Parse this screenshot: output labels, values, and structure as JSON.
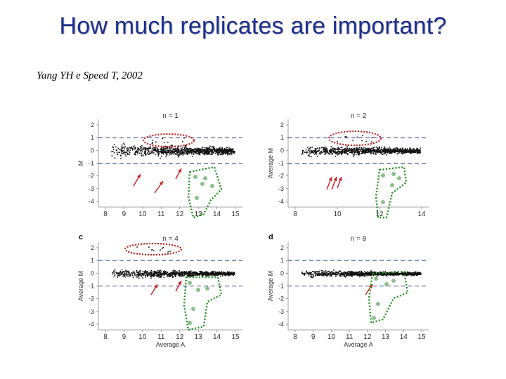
{
  "slide": {
    "title": "How much replicates are important?",
    "citation": "Yang YH e Speed T, 2002"
  },
  "figure": {
    "colors": {
      "points": "#111111",
      "dashed": "#2b3b8f",
      "red": "#cc1f1f",
      "green": "#1f8f1f",
      "green_points": "#8fbf8f"
    },
    "panels": [
      {
        "letter": "",
        "n_label": "n = 1",
        "xlabel": "",
        "ylabel": "M",
        "yticks": [
          "2",
          "1",
          "0",
          "-1",
          "-2",
          "-3",
          "-4"
        ],
        "xticks": [
          "8",
          "9",
          "10",
          "11",
          "12",
          "13",
          "14",
          "15"
        ]
      },
      {
        "letter": "",
        "n_label": "n = 2",
        "xlabel": "",
        "ylabel": "Average M",
        "yticks": [
          "2",
          "1",
          "0",
          "-1",
          "-2",
          "-3",
          "-4"
        ],
        "xticks": [
          "8",
          "10",
          "12",
          "14"
        ]
      },
      {
        "letter": "c",
        "n_label": "n = 4",
        "xlabel": "Average A",
        "ylabel": "Average M",
        "yticks": [
          "2",
          "1",
          "0",
          "-1",
          "-2",
          "-3",
          "-4"
        ],
        "xticks": [
          "8",
          "9",
          "10",
          "11",
          "12",
          "13",
          "14",
          "15"
        ]
      },
      {
        "letter": "d",
        "n_label": "n = 8",
        "xlabel": "Average A",
        "ylabel": "Average M",
        "yticks": [
          "2",
          "1",
          "0",
          "-1",
          "-2",
          "-3",
          "-4"
        ],
        "xticks": [
          "8",
          "9",
          "10",
          "11",
          "12",
          "13",
          "14",
          "15"
        ]
      }
    ]
  }
}
